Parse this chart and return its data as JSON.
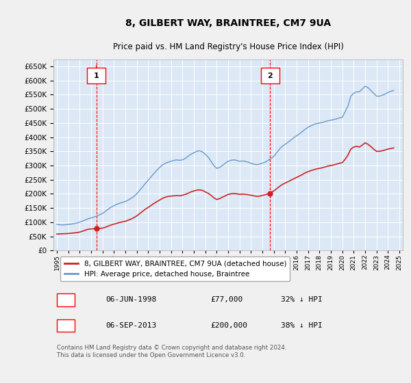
{
  "title": "8, GILBERT WAY, BRAINTREE, CM7 9UA",
  "subtitle": "Price paid vs. HM Land Registry's House Price Index (HPI)",
  "background_color": "#e8f0f8",
  "plot_bg_color": "#dce8f5",
  "grid_color": "#ffffff",
  "hpi_color": "#6699cc",
  "price_color": "#cc2222",
  "ylim": [
    0,
    675000
  ],
  "yticks": [
    0,
    50000,
    100000,
    150000,
    200000,
    250000,
    300000,
    350000,
    400000,
    450000,
    500000,
    550000,
    600000,
    650000
  ],
  "xlabel_years": [
    "1995",
    "1996",
    "1997",
    "1998",
    "1999",
    "2000",
    "2001",
    "2002",
    "2003",
    "2004",
    "2005",
    "2006",
    "2007",
    "2008",
    "2009",
    "2010",
    "2011",
    "2012",
    "2013",
    "2014",
    "2015",
    "2016",
    "2017",
    "2018",
    "2019",
    "2020",
    "2021",
    "2022",
    "2023",
    "2024",
    "2025"
  ],
  "annotation1": {
    "label": "1",
    "date": "06-JUN-1998",
    "price": 77000,
    "hpi_pct": "32% ↓ HPI"
  },
  "annotation2": {
    "label": "2",
    "date": "06-SEP-2013",
    "price": 200000,
    "hpi_pct": "38% ↓ HPI"
  },
  "legend_line1": "8, GILBERT WAY, BRAINTREE, CM7 9UA (detached house)",
  "legend_line2": "HPI: Average price, detached house, Braintree",
  "footer": "Contains HM Land Registry data © Crown copyright and database right 2024.\nThis data is licensed under the Open Government Licence v3.0.",
  "table_row1": [
    "1",
    "06-JUN-1998",
    "£77,000",
    "32% ↓ HPI"
  ],
  "table_row2": [
    "2",
    "06-SEP-2013",
    "£200,000",
    "38% ↓ HPI"
  ],
  "hpi_data": {
    "years": [
      1995.0,
      1995.25,
      1995.5,
      1995.75,
      1996.0,
      1996.25,
      1996.5,
      1996.75,
      1997.0,
      1997.25,
      1997.5,
      1997.75,
      1998.0,
      1998.25,
      1998.5,
      1998.75,
      1999.0,
      1999.25,
      1999.5,
      1999.75,
      2000.0,
      2000.25,
      2000.5,
      2000.75,
      2001.0,
      2001.25,
      2001.5,
      2001.75,
      2002.0,
      2002.25,
      2002.5,
      2002.75,
      2003.0,
      2003.25,
      2003.5,
      2003.75,
      2004.0,
      2004.25,
      2004.5,
      2004.75,
      2005.0,
      2005.25,
      2005.5,
      2005.75,
      2006.0,
      2006.25,
      2006.5,
      2006.75,
      2007.0,
      2007.25,
      2007.5,
      2007.75,
      2008.0,
      2008.25,
      2008.5,
      2008.75,
      2009.0,
      2009.25,
      2009.5,
      2009.75,
      2010.0,
      2010.25,
      2010.5,
      2010.75,
      2011.0,
      2011.25,
      2011.5,
      2011.75,
      2012.0,
      2012.25,
      2012.5,
      2012.75,
      2013.0,
      2013.25,
      2013.5,
      2013.75,
      2014.0,
      2014.25,
      2014.5,
      2014.75,
      2015.0,
      2015.25,
      2015.5,
      2015.75,
      2016.0,
      2016.25,
      2016.5,
      2016.75,
      2017.0,
      2017.25,
      2017.5,
      2017.75,
      2018.0,
      2018.25,
      2018.5,
      2018.75,
      2019.0,
      2019.25,
      2019.5,
      2019.75,
      2020.0,
      2020.25,
      2020.5,
      2020.75,
      2021.0,
      2021.25,
      2021.5,
      2021.75,
      2022.0,
      2022.25,
      2022.5,
      2022.75,
      2023.0,
      2023.25,
      2023.5,
      2023.75,
      2024.0,
      2024.25,
      2024.5
    ],
    "values": [
      92000,
      91000,
      90500,
      91000,
      92000,
      93000,
      95000,
      97000,
      100000,
      104000,
      108000,
      112000,
      115000,
      118000,
      122000,
      126000,
      131000,
      138000,
      146000,
      153000,
      158000,
      163000,
      167000,
      170000,
      173000,
      178000,
      184000,
      191000,
      200000,
      212000,
      224000,
      237000,
      248000,
      260000,
      272000,
      283000,
      293000,
      302000,
      308000,
      312000,
      315000,
      318000,
      320000,
      318000,
      320000,
      325000,
      333000,
      340000,
      345000,
      350000,
      352000,
      348000,
      340000,
      330000,
      315000,
      300000,
      290000,
      293000,
      300000,
      308000,
      315000,
      318000,
      320000,
      318000,
      315000,
      316000,
      315000,
      312000,
      308000,
      305000,
      303000,
      305000,
      308000,
      312000,
      318000,
      325000,
      332000,
      345000,
      358000,
      368000,
      375000,
      382000,
      390000,
      398000,
      405000,
      412000,
      420000,
      428000,
      435000,
      440000,
      445000,
      448000,
      450000,
      452000,
      455000,
      458000,
      460000,
      462000,
      465000,
      468000,
      470000,
      490000,
      510000,
      545000,
      555000,
      560000,
      560000,
      570000,
      580000,
      575000,
      565000,
      555000,
      545000,
      545000,
      548000,
      552000,
      558000,
      562000,
      565000
    ]
  },
  "price_data": {
    "years": [
      1995.0,
      1995.25,
      1995.5,
      1995.75,
      1996.0,
      1996.25,
      1996.5,
      1996.75,
      1997.0,
      1997.25,
      1997.5,
      1997.75,
      1998.0,
      1998.45,
      1999.0,
      1999.25,
      1999.5,
      1999.75,
      2000.0,
      2000.25,
      2000.5,
      2000.75,
      2001.0,
      2001.25,
      2001.5,
      2001.75,
      2002.0,
      2002.25,
      2002.5,
      2002.75,
      2003.0,
      2003.25,
      2003.5,
      2003.75,
      2004.0,
      2004.25,
      2004.5,
      2004.75,
      2005.0,
      2005.25,
      2005.5,
      2005.75,
      2006.0,
      2006.25,
      2006.5,
      2006.75,
      2007.0,
      2007.25,
      2007.5,
      2007.75,
      2008.0,
      2008.25,
      2008.5,
      2008.75,
      2009.0,
      2009.25,
      2009.5,
      2009.75,
      2010.0,
      2010.25,
      2010.5,
      2010.75,
      2011.0,
      2011.25,
      2011.5,
      2011.75,
      2012.0,
      2012.25,
      2012.5,
      2012.75,
      2013.0,
      2013.25,
      2013.67,
      2013.75,
      2014.0,
      2014.25,
      2014.5,
      2014.75,
      2015.0,
      2015.25,
      2015.5,
      2015.75,
      2016.0,
      2016.25,
      2016.5,
      2016.75,
      2017.0,
      2017.25,
      2017.5,
      2017.75,
      2018.0,
      2018.25,
      2018.5,
      2018.75,
      2019.0,
      2019.25,
      2019.5,
      2019.75,
      2020.0,
      2020.25,
      2020.5,
      2020.75,
      2021.0,
      2021.25,
      2021.5,
      2021.75,
      2022.0,
      2022.25,
      2022.5,
      2022.75,
      2023.0,
      2023.25,
      2023.5,
      2023.75,
      2024.0,
      2024.25,
      2024.5
    ],
    "values": [
      58000,
      58500,
      59000,
      59500,
      60000,
      61000,
      62000,
      63000,
      65000,
      68000,
      72000,
      75000,
      76000,
      77000,
      79000,
      82000,
      86000,
      90000,
      93000,
      96000,
      99000,
      101000,
      103000,
      107000,
      111000,
      116000,
      122000,
      130000,
      138000,
      146000,
      152000,
      159000,
      166000,
      172000,
      178000,
      184000,
      188000,
      191000,
      192000,
      193000,
      194000,
      193000,
      195000,
      198000,
      202000,
      207000,
      210000,
      213000,
      214000,
      212000,
      207000,
      202000,
      195000,
      186000,
      180000,
      183000,
      188000,
      193000,
      198000,
      200000,
      201000,
      200000,
      198000,
      199000,
      198000,
      197000,
      195000,
      193000,
      191000,
      192000,
      194000,
      197000,
      200000,
      205000,
      210000,
      218000,
      226000,
      233000,
      238000,
      243000,
      248000,
      253000,
      258000,
      263000,
      268000,
      274000,
      278000,
      282000,
      285000,
      288000,
      290000,
      292000,
      295000,
      298000,
      300000,
      302000,
      305000,
      308000,
      310000,
      322000,
      337000,
      358000,
      365000,
      368000,
      365000,
      372000,
      380000,
      375000,
      367000,
      358000,
      350000,
      350000,
      352000,
      355000,
      358000,
      360000,
      362000
    ]
  }
}
